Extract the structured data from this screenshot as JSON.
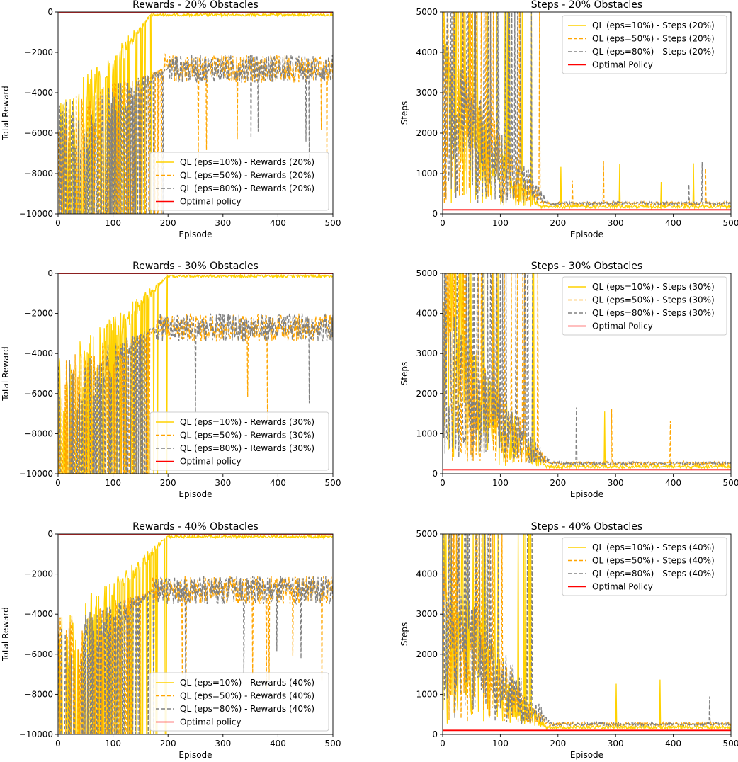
{
  "colors": {
    "yellow": "#FFD200",
    "orange": "#FFA500",
    "gray": "#808080",
    "red": "#FF0000"
  },
  "chart_data": [
    {
      "type": "line",
      "kind": "rewards",
      "title": "Rewards - 20% Obstacles",
      "xlabel": "Episode",
      "ylabel": "Total Reward",
      "xlim": [
        0,
        500
      ],
      "ylim": [
        -10000,
        0
      ],
      "xticks": [
        "0",
        "100",
        "200",
        "300",
        "400",
        "500"
      ],
      "yticks": [
        "0",
        "−2000",
        "−4000",
        "−6000",
        "−8000",
        "−10000"
      ],
      "legend_position": "lower-right",
      "grid": false,
      "series": [
        {
          "name": "QL (eps=10%) - Rewards (20%)",
          "color": "#FFD200",
          "style": "solid",
          "conv_x": 170,
          "start_x": 15,
          "level": -80
        },
        {
          "name": "QL (eps=50%)  - Rewards (20%)",
          "color": "#FFA500",
          "style": "dashed",
          "conv_x": 190,
          "start_x": 40,
          "level": -2800
        },
        {
          "name": "QL (eps=80%) - Rewards (20%)",
          "color": "#808080",
          "style": "dashed",
          "conv_x": 200,
          "start_x": 45,
          "level": -2800
        },
        {
          "name": "Optimal policy",
          "color": "#FF0000",
          "style": "solid",
          "constant": 0
        }
      ]
    },
    {
      "type": "line",
      "kind": "steps",
      "title": "Steps - 20% Obstacles",
      "xlabel": "Episode",
      "ylabel": "Steps",
      "xlim": [
        0,
        500
      ],
      "ylim": [
        0,
        5000
      ],
      "xticks": [
        "0",
        "100",
        "200",
        "300",
        "400",
        "500"
      ],
      "yticks": [
        "0",
        "1000",
        "2000",
        "3000",
        "4000",
        "5000"
      ],
      "legend_position": "upper-right",
      "grid": false,
      "series": [
        {
          "name": "QL (eps=10%) - Steps (20%)",
          "color": "#FFD200",
          "style": "solid",
          "conv_x": 170,
          "level": 180
        },
        {
          "name": "QL (eps=50%) - Steps (20%)",
          "color": "#FFA500",
          "style": "dashed",
          "conv_x": 180,
          "level": 260
        },
        {
          "name": "QL (eps=80%) - Steps (20%)",
          "color": "#808080",
          "style": "dashed",
          "conv_x": 185,
          "level": 260
        },
        {
          "name": "Optimal Policy",
          "color": "#FF0000",
          "style": "solid",
          "constant": 100
        }
      ]
    },
    {
      "type": "line",
      "kind": "rewards",
      "title": "Rewards - 30% Obstacles",
      "xlabel": "Episode",
      "ylabel": "Total Reward",
      "xlim": [
        0,
        500
      ],
      "ylim": [
        -10000,
        0
      ],
      "xticks": [
        "0",
        "100",
        "200",
        "300",
        "400",
        "500"
      ],
      "yticks": [
        "0",
        "−2000",
        "−4000",
        "−6000",
        "−8000",
        "−10000"
      ],
      "legend_position": "lower-right",
      "grid": false,
      "series": [
        {
          "name": "QL (eps=10%) - Rewards (30%)",
          "color": "#FFD200",
          "style": "solid",
          "conv_x": 200,
          "start_x": 10,
          "level": -80
        },
        {
          "name": "QL (eps=50%)  - Rewards (30%)",
          "color": "#FFA500",
          "style": "dashed",
          "conv_x": 180,
          "start_x": 35,
          "level": -2700
        },
        {
          "name": "QL (eps=80%) - Rewards (30%)",
          "color": "#808080",
          "style": "dashed",
          "conv_x": 175,
          "start_x": 40,
          "level": -2700
        },
        {
          "name": "Optimal policy",
          "color": "#FF0000",
          "style": "solid",
          "constant": 0
        }
      ]
    },
    {
      "type": "line",
      "kind": "steps",
      "title": "Steps - 30% Obstacles",
      "xlabel": "Episode",
      "ylabel": "Steps",
      "xlim": [
        0,
        500
      ],
      "ylim": [
        0,
        5000
      ],
      "xticks": [
        "0",
        "100",
        "200",
        "300",
        "400",
        "500"
      ],
      "yticks": [
        "0",
        "1000",
        "2000",
        "3000",
        "4000",
        "5000"
      ],
      "legend_position": "upper-right",
      "grid": false,
      "series": [
        {
          "name": "QL (eps=10%) - Steps (30%)",
          "color": "#FFD200",
          "style": "solid",
          "conv_x": 180,
          "level": 180
        },
        {
          "name": "QL (eps=50%) - Steps (30%)",
          "color": "#FFA500",
          "style": "dashed",
          "conv_x": 185,
          "level": 260
        },
        {
          "name": "QL (eps=80%) - Steps (30%)",
          "color": "#808080",
          "style": "dashed",
          "conv_x": 190,
          "level": 260
        },
        {
          "name": "Optimal Policy",
          "color": "#FF0000",
          "style": "solid",
          "constant": 100
        }
      ]
    },
    {
      "type": "line",
      "kind": "rewards",
      "title": "Rewards - 40% Obstacles",
      "xlabel": "Episode",
      "ylabel": "Total Reward",
      "xlim": [
        0,
        500
      ],
      "ylim": [
        -10000,
        0
      ],
      "xticks": [
        "0",
        "100",
        "200",
        "300",
        "400",
        "500"
      ],
      "yticks": [
        "0",
        "−2000",
        "−4000",
        "−6000",
        "−8000",
        "−10000"
      ],
      "legend_position": "lower-right",
      "grid": false,
      "series": [
        {
          "name": "QL (eps=10%) - Rewards (40%)",
          "color": "#FFD200",
          "style": "solid",
          "conv_x": 200,
          "start_x": 10,
          "level": -80
        },
        {
          "name": "QL (eps=50%)  - Rewards (40%)",
          "color": "#FFA500",
          "style": "dashed",
          "conv_x": 170,
          "start_x": 35,
          "level": -2800
        },
        {
          "name": "QL (eps=80%) - Rewards (40%)",
          "color": "#808080",
          "style": "dashed",
          "conv_x": 175,
          "start_x": 40,
          "level": -2800
        },
        {
          "name": "Optimal policy",
          "color": "#FF0000",
          "style": "solid",
          "constant": 0
        }
      ]
    },
    {
      "type": "line",
      "kind": "steps",
      "title": "Steps - 40% Obstacles",
      "xlabel": "Episode",
      "ylabel": "Steps",
      "xlim": [
        0,
        500
      ],
      "ylim": [
        0,
        5000
      ],
      "xticks": [
        "0",
        "100",
        "200",
        "300",
        "400",
        "500"
      ],
      "yticks": [
        "0",
        "1000",
        "2000",
        "3000",
        "4000",
        "5000"
      ],
      "legend_position": "upper-right",
      "grid": false,
      "series": [
        {
          "name": "QL (eps=10%) - Steps (40%)",
          "color": "#FFD200",
          "style": "solid",
          "conv_x": 180,
          "level": 180
        },
        {
          "name": "QL (eps=50%) - Steps (40%)",
          "color": "#FFA500",
          "style": "dashed",
          "conv_x": 185,
          "level": 260
        },
        {
          "name": "QL (eps=80%) - Steps (40%)",
          "color": "#808080",
          "style": "dashed",
          "conv_x": 190,
          "level": 260
        },
        {
          "name": "Optimal Policy",
          "color": "#FF0000",
          "style": "solid",
          "constant": 100
        }
      ]
    }
  ]
}
